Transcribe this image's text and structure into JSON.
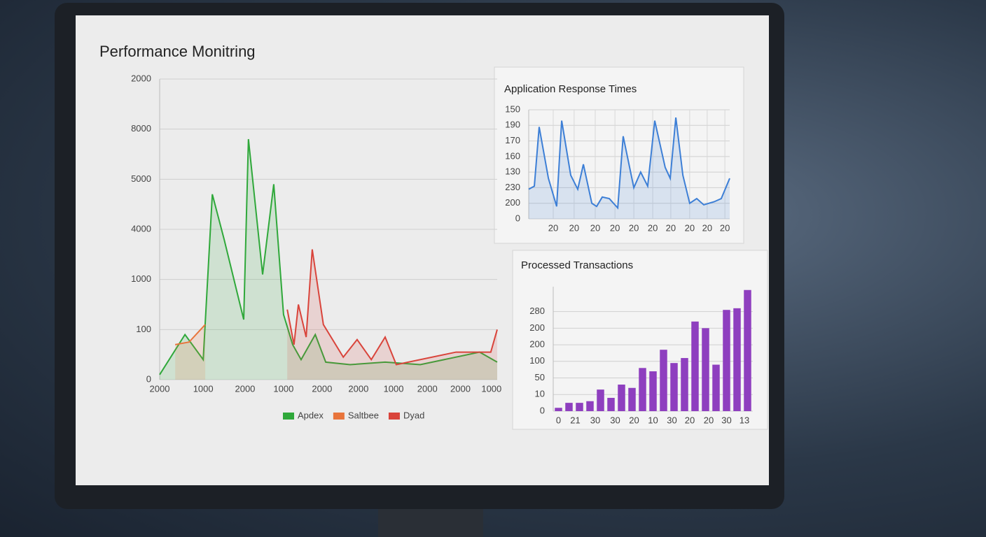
{
  "chart_data": [
    {
      "type": "area",
      "title": "Performance Monitring",
      "xlim": [
        0,
        100
      ],
      "xticks": [
        {
          "value": 0,
          "label": "2000"
        },
        {
          "value": 12.9,
          "label": "1000"
        },
        {
          "value": 25.3,
          "label": "2000"
        },
        {
          "value": 36.7,
          "label": "1000"
        },
        {
          "value": 48.1,
          "label": "2000"
        },
        {
          "value": 58.9,
          "label": "2000"
        },
        {
          "value": 69.3,
          "label": "1000"
        },
        {
          "value": 79.3,
          "label": "2000"
        },
        {
          "value": 89.1,
          "label": "2000"
        },
        {
          "value": 98.3,
          "label": "1000"
        }
      ],
      "ylim": [
        0,
        6
      ],
      "yticks": [
        0,
        {
          "value": 1,
          "label": "100"
        },
        {
          "value": 2,
          "label": "1000"
        },
        {
          "value": 3,
          "label": "4000"
        },
        {
          "value": 4,
          "label": "5000"
        },
        {
          "value": 5,
          "label": "8000"
        },
        {
          "value": 6,
          "label": "2000"
        }
      ],
      "grid": true,
      "series": [
        {
          "name": "Apdex",
          "color": "#2fa83a",
          "x": [
            0,
            7.5,
            12.9,
            15.6,
            19.1,
            24.9,
            26.3,
            30.5,
            33.8,
            36.7,
            39.4,
            41.9,
            46.1,
            49.2,
            56.4,
            66.8,
            77.2,
            94.8,
            100
          ],
          "values": [
            0.1,
            0.9,
            0.4,
            3.7,
            2.8,
            1.2,
            4.8,
            2.1,
            3.9,
            1.3,
            0.7,
            0.4,
            0.9,
            0.35,
            0.3,
            0.35,
            0.3,
            0.55,
            0.35
          ]
        },
        {
          "name": "Saltbee",
          "color": "#e8743b",
          "x": [
            4.6,
            8.7,
            13.5
          ],
          "values": [
            0.7,
            0.75,
            1.1
          ]
        },
        {
          "name": "Dyad",
          "color": "#d9443b",
          "x": [
            37.8,
            39.8,
            41.1,
            43.4,
            45.2,
            48.5,
            54.4,
            58.5,
            62.7,
            66.8,
            70.1,
            87.8,
            98.1,
            100
          ],
          "values": [
            1.4,
            0.7,
            1.5,
            0.85,
            2.6,
            1.1,
            0.45,
            0.8,
            0.4,
            0.85,
            0.3,
            0.55,
            0.55,
            1.0
          ]
        }
      ]
    },
    {
      "type": "area",
      "title": "Application Response Times",
      "xlim": [
        0,
        100
      ],
      "xticks": [
        {
          "value": 12.2,
          "label": "20"
        },
        {
          "value": 22.6,
          "label": "20"
        },
        {
          "value": 33.1,
          "label": "20"
        },
        {
          "value": 42.9,
          "label": "20"
        },
        {
          "value": 52.3,
          "label": "20"
        },
        {
          "value": 61.7,
          "label": "20"
        },
        {
          "value": 70.7,
          "label": "20"
        },
        {
          "value": 80.1,
          "label": "20"
        },
        {
          "value": 88.8,
          "label": "20"
        },
        {
          "value": 97.6,
          "label": "20"
        }
      ],
      "ylim": [
        0,
        7
      ],
      "yticks": [
        0,
        {
          "value": 1,
          "label": "200"
        },
        {
          "value": 2,
          "label": "230"
        },
        {
          "value": 3,
          "label": "130"
        },
        {
          "value": 4,
          "label": "160"
        },
        {
          "value": 5,
          "label": "170"
        },
        {
          "value": 6,
          "label": "190"
        },
        {
          "value": 7,
          "label": "150"
        }
      ],
      "grid": true,
      "series": [
        {
          "color": "#3d7fd6",
          "x": [
            0,
            2.8,
            5.2,
            9.8,
            13.9,
            16.4,
            20.9,
            24.4,
            27.2,
            31.4,
            33.8,
            36.6,
            40.1,
            44.3,
            47.0,
            52.3,
            55.7,
            59.2,
            62.7,
            67.9,
            70.4,
            73.2,
            76.7,
            80.1,
            83.6,
            87.1,
            92.3,
            95.8,
            100
          ],
          "values": [
            1.9,
            2.1,
            5.9,
            2.6,
            0.8,
            6.3,
            2.8,
            1.9,
            3.5,
            1.0,
            0.8,
            1.4,
            1.3,
            0.7,
            5.3,
            2.0,
            3.0,
            2.1,
            6.3,
            3.3,
            2.6,
            6.5,
            2.8,
            1.0,
            1.3,
            0.9,
            1.1,
            1.3,
            2.6
          ]
        }
      ]
    },
    {
      "type": "bar",
      "title": "Processed Transactions",
      "xlim": [
        -0.5,
        18.5
      ],
      "xticks": [
        {
          "value": 0,
          "label": "0"
        },
        {
          "value": 1.6,
          "label": "21"
        },
        {
          "value": 3.5,
          "label": "30"
        },
        {
          "value": 5.4,
          "label": "30"
        },
        {
          "value": 7.2,
          "label": "20"
        },
        {
          "value": 9.0,
          "label": "10"
        },
        {
          "value": 10.8,
          "label": "30"
        },
        {
          "value": 12.5,
          "label": "20"
        },
        {
          "value": 14.3,
          "label": "20"
        },
        {
          "value": 16.0,
          "label": "30"
        },
        {
          "value": 17.7,
          "label": "13"
        }
      ],
      "ylim": [
        0,
        7.5
      ],
      "yticks": [
        0,
        {
          "value": 1,
          "label": "10"
        },
        {
          "value": 2,
          "label": "50"
        },
        {
          "value": 3,
          "label": "100"
        },
        {
          "value": 4,
          "label": "200"
        },
        {
          "value": 5,
          "label": "200"
        },
        {
          "value": 6,
          "label": "280"
        }
      ],
      "grid": true,
      "series": [
        {
          "color": "#8e3fbf",
          "x": [
            0,
            1,
            2,
            3,
            4,
            5,
            6,
            7,
            8,
            9,
            10,
            11,
            12,
            13,
            14,
            15,
            16,
            17,
            18
          ],
          "values": [
            0.2,
            0.5,
            0.5,
            0.6,
            1.3,
            0.8,
            1.6,
            1.4,
            2.6,
            2.4,
            3.7,
            2.9,
            3.2,
            5.4,
            5.0,
            2.8,
            6.1,
            6.2,
            7.3
          ]
        }
      ]
    }
  ]
}
